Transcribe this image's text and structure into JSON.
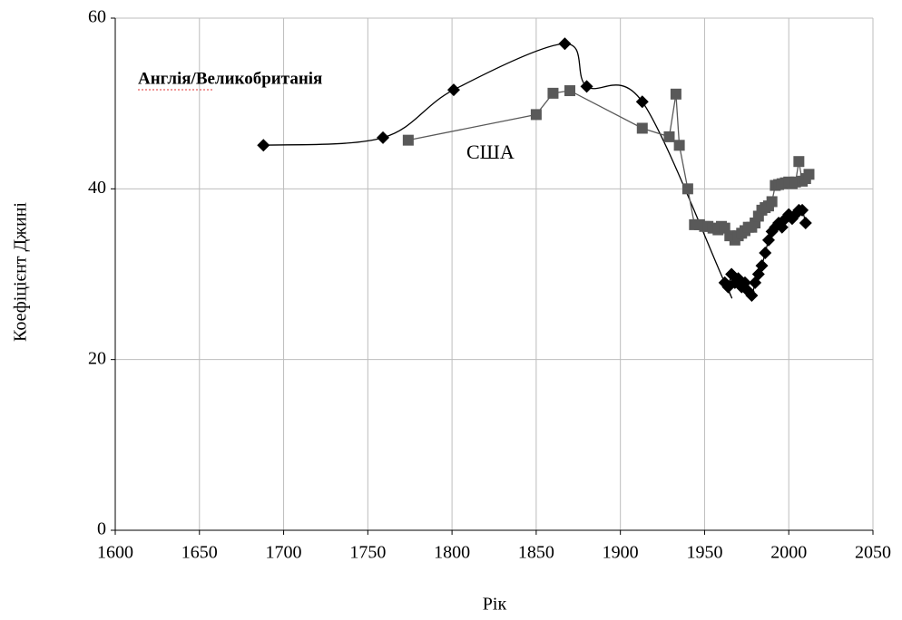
{
  "chart_data": {
    "type": "line",
    "xlabel": "Рік",
    "ylabel": "Коефіцієнт Джині",
    "annotations": [
      "Англія/Великобританія",
      "США"
    ],
    "xlim": [
      1600,
      2050
    ],
    "xticks": [
      1600,
      1650,
      1700,
      1750,
      1800,
      1850,
      1900,
      1950,
      2000,
      2050
    ],
    "ylim": [
      0,
      60
    ],
    "yticks": [
      0,
      20,
      40,
      60
    ],
    "grid": true,
    "series": [
      {
        "color": "#000000",
        "marker": "diamond",
        "smooth": true,
        "x": [
          1688,
          1759,
          1801,
          1867,
          1880,
          1913,
          1962,
          1964,
          1966,
          1968,
          1970,
          1972,
          1974,
          1976,
          1978,
          1980,
          1982,
          1984,
          1986,
          1988,
          1990,
          1992,
          1994,
          1996,
          1998,
          2000,
          2002,
          2004,
          2006,
          2008,
          2010
        ],
        "values": [
          45.1,
          46.0,
          51.6,
          57.0,
          52.0,
          50.2,
          29.0,
          28.5,
          30.0,
          29.0,
          29.5,
          28.5,
          29.0,
          28.0,
          27.5,
          29.0,
          30.0,
          31.0,
          32.5,
          34.0,
          35.0,
          35.5,
          36.0,
          35.5,
          36.5,
          37.0,
          36.5,
          37.0,
          37.5,
          37.5,
          36.0
        ]
      },
      {
        "color": "#595959",
        "marker": "square",
        "smooth": false,
        "x": [
          1774,
          1850,
          1860,
          1870,
          1913,
          1929,
          1933,
          1935,
          1940,
          1944,
          1947,
          1950,
          1952,
          1955,
          1958,
          1960,
          1962,
          1965,
          1968,
          1970,
          1972,
          1974,
          1976,
          1978,
          1980,
          1982,
          1984,
          1986,
          1988,
          1990,
          1992,
          1994,
          1996,
          1998,
          2000,
          2002,
          2004,
          2006,
          2008,
          2010,
          2012
        ],
        "values": [
          45.7,
          48.7,
          51.2,
          51.5,
          47.1,
          46.1,
          51.1,
          45.1,
          40.0,
          35.8,
          35.8,
          35.6,
          35.6,
          35.4,
          35.2,
          35.6,
          35.4,
          34.5,
          34.0,
          34.5,
          34.8,
          35.1,
          35.5,
          35.5,
          36.0,
          36.8,
          37.5,
          37.8,
          38.0,
          38.5,
          40.4,
          40.5,
          40.6,
          40.7,
          40.8,
          40.6,
          40.8,
          43.2,
          40.9,
          41.2,
          41.7
        ]
      }
    ]
  }
}
